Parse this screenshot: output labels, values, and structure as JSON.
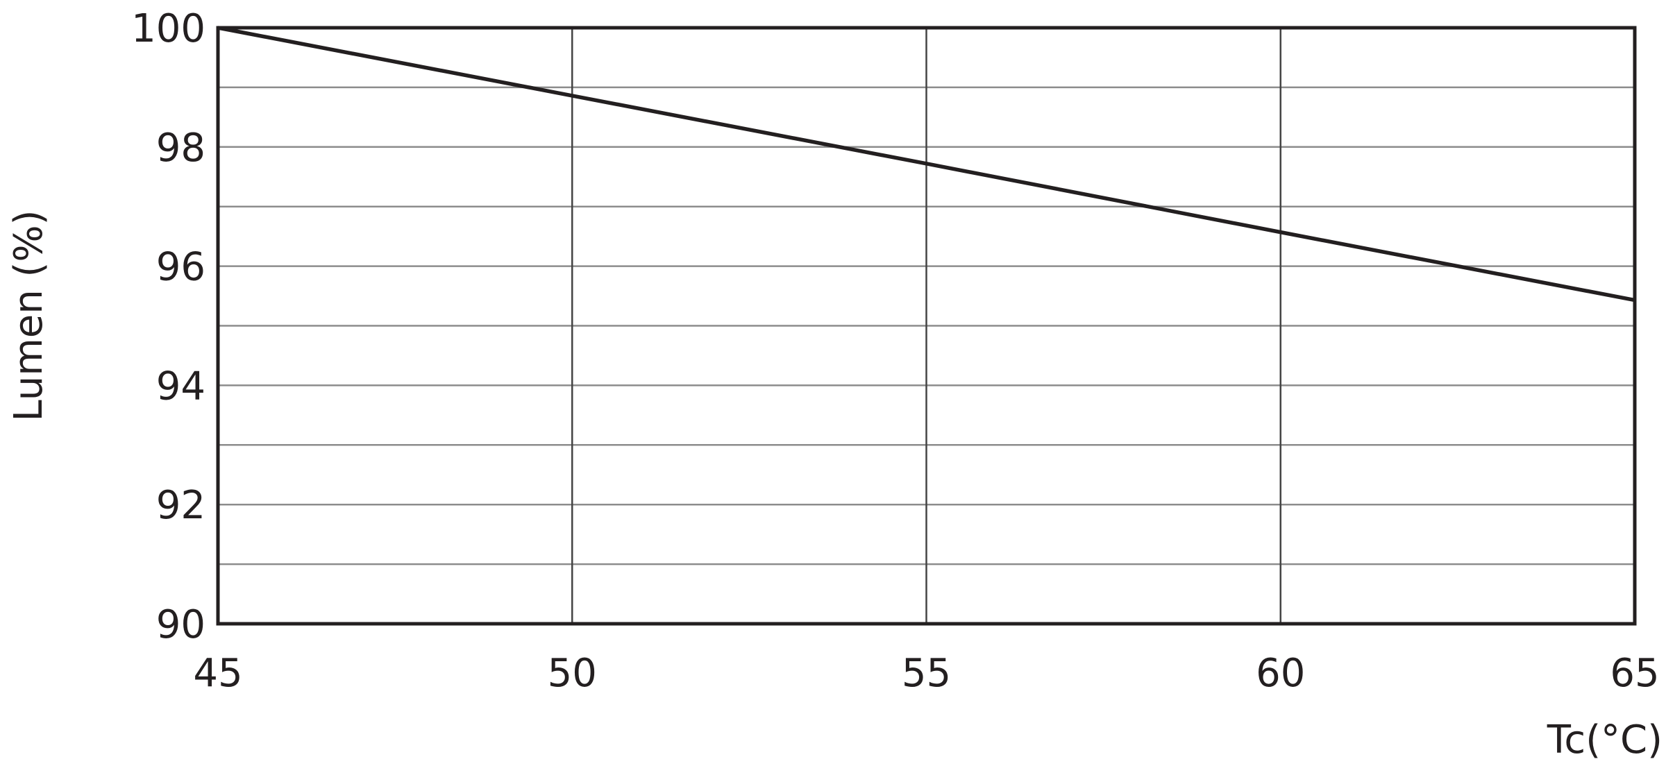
{
  "chart_data": {
    "type": "line",
    "title": "",
    "xlabel": "Tc(°C)",
    "ylabel": "Lumen (%)",
    "xlim": [
      45,
      65
    ],
    "ylim": [
      90,
      100
    ],
    "x_ticks": [
      "45",
      "50",
      "55",
      "60",
      "65"
    ],
    "y_ticks": [
      "90",
      "92",
      "94",
      "96",
      "98",
      "100"
    ],
    "grid": true,
    "legend": "none",
    "series": [
      {
        "x": [
          45,
          50,
          55,
          60,
          65
        ],
        "y": [
          100,
          98.86,
          97.72,
          96.57,
          95.43
        ],
        "color": "#231f20"
      }
    ],
    "colors": {
      "line": "#231f20",
      "grid": "#8c8c8c",
      "frame": "#231f20"
    }
  }
}
